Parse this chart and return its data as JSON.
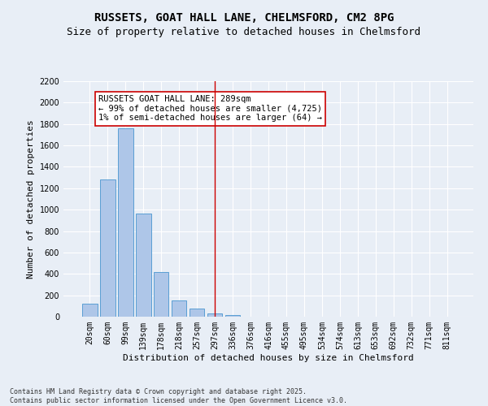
{
  "title_line1": "RUSSETS, GOAT HALL LANE, CHELMSFORD, CM2 8PG",
  "title_line2": "Size of property relative to detached houses in Chelmsford",
  "xlabel": "Distribution of detached houses by size in Chelmsford",
  "ylabel": "Number of detached properties",
  "bar_color": "#aec6e8",
  "bar_edge_color": "#5a9fd4",
  "background_color": "#e8eef6",
  "grid_color": "#ffffff",
  "categories": [
    "20sqm",
    "60sqm",
    "99sqm",
    "139sqm",
    "178sqm",
    "218sqm",
    "257sqm",
    "297sqm",
    "336sqm",
    "376sqm",
    "416sqm",
    "455sqm",
    "495sqm",
    "534sqm",
    "574sqm",
    "613sqm",
    "653sqm",
    "692sqm",
    "732sqm",
    "771sqm",
    "811sqm"
  ],
  "values": [
    120,
    1280,
    1760,
    960,
    420,
    155,
    75,
    30,
    15,
    0,
    0,
    0,
    0,
    0,
    0,
    0,
    0,
    0,
    0,
    0,
    0
  ],
  "ylim": [
    0,
    2200
  ],
  "yticks": [
    0,
    200,
    400,
    600,
    800,
    1000,
    1200,
    1400,
    1600,
    1800,
    2000,
    2200
  ],
  "vline_x": 7,
  "vline_color": "#cc0000",
  "annotation_text": "RUSSETS GOAT HALL LANE: 289sqm\n← 99% of detached houses are smaller (4,725)\n1% of semi-detached houses are larger (64) →",
  "annotation_box_color": "#ffffff",
  "annotation_box_edge_color": "#cc0000",
  "footer_text": "Contains HM Land Registry data © Crown copyright and database right 2025.\nContains public sector information licensed under the Open Government Licence v3.0.",
  "title_fontsize": 10,
  "subtitle_fontsize": 9,
  "tick_fontsize": 7,
  "label_fontsize": 8,
  "annotation_fontsize": 7.5,
  "footer_fontsize": 6
}
